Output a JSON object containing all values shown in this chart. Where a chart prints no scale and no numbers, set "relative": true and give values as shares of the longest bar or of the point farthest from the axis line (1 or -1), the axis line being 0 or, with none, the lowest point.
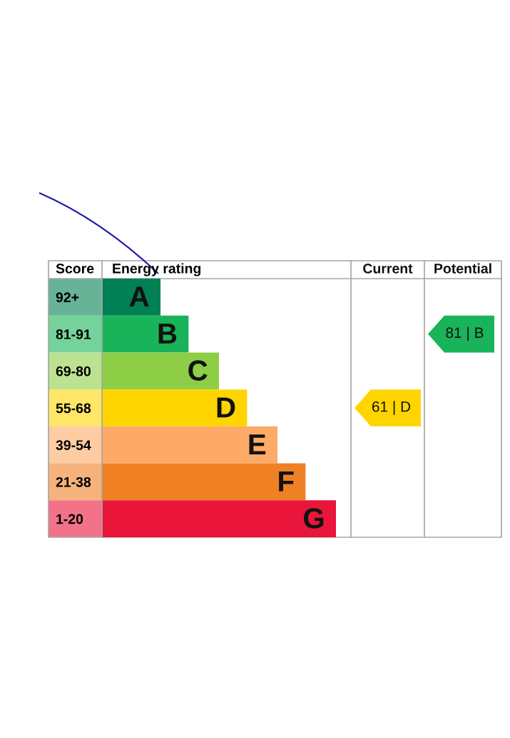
{
  "chart_data": [
    {
      "type": "bar",
      "orientation": "horizontal",
      "relative": true,
      "ylabel": "Score",
      "xlabel": "Energy rating",
      "categories": [
        "92+",
        "81-91",
        "69-80",
        "55-68",
        "39-54",
        "21-38",
        "1-20"
      ],
      "values": [
        0.25,
        0.37,
        0.5,
        0.62,
        0.75,
        0.87,
        1
      ],
      "colors": [
        "#008054",
        "#19b459",
        "#8dce46",
        "#ffd500",
        "#fcaa65",
        "#ef8023",
        "#e9153b"
      ],
      "annotations": [
        {
          "text": "A",
          "x": 0.25,
          "y": "92+"
        },
        {
          "text": "B",
          "x": 0.37,
          "y": "81-91"
        },
        {
          "text": "C",
          "x": 0.5,
          "y": "69-80"
        },
        {
          "text": "D",
          "x": 0.62,
          "y": "55-68"
        },
        {
          "text": "E",
          "x": 0.75,
          "y": "39-54"
        },
        {
          "text": "F",
          "x": 0.87,
          "y": "21-38"
        },
        {
          "text": "G",
          "x": 1,
          "y": "1-20"
        }
      ]
    },
    {
      "type": "other",
      "title": "Current",
      "categories": [
        null,
        null,
        null,
        "61 | D",
        null,
        null,
        null
      ],
      "colors": [
        null,
        null,
        null,
        "#ffd500",
        null,
        null,
        null
      ]
    },
    {
      "type": "other",
      "title": "Potential",
      "categories": [
        null,
        "81 | B",
        null,
        null,
        null,
        null,
        null
      ],
      "colors": [
        null,
        "#19b459",
        null,
        null,
        null,
        null,
        null
      ]
    }
  ]
}
